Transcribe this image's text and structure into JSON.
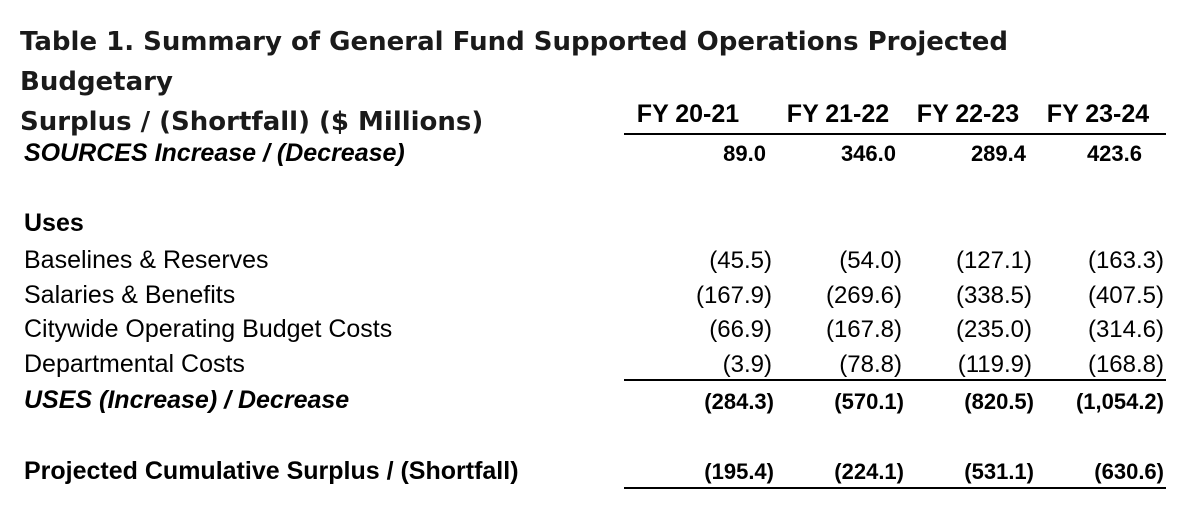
{
  "table": {
    "title_line1": "Table 1. Summary of General Fund Supported Operations Projected Budgetary",
    "title_line2": "Surplus / (Shortfall) ($ Millions)",
    "columns": [
      "FY 20-21",
      "FY 21-22",
      "FY 22-23",
      "FY 23-24"
    ],
    "sources": {
      "label": "SOURCES Increase / (Decrease)",
      "values": [
        "89.0",
        "346.0",
        "289.4",
        "423.6"
      ]
    },
    "uses_heading": "Uses",
    "uses_rows": [
      {
        "label": "Baselines & Reserves",
        "values": [
          "(45.5)",
          "(54.0)",
          "(127.1)",
          "(163.3)"
        ]
      },
      {
        "label": "Salaries & Benefits",
        "values": [
          "(167.9)",
          "(269.6)",
          "(338.5)",
          "(407.5)"
        ]
      },
      {
        "label": "Citywide Operating Budget Costs",
        "values": [
          "(66.9)",
          "(167.8)",
          "(235.0)",
          "(314.6)"
        ]
      },
      {
        "label": "Departmental Costs",
        "values": [
          "(3.9)",
          "(78.8)",
          "(119.9)",
          "(168.8)"
        ]
      }
    ],
    "uses_total": {
      "label": "USES (Increase) / Decrease",
      "values": [
        "(284.3)",
        "(570.1)",
        "(820.5)",
        "(1,054.2)"
      ]
    },
    "surplus": {
      "label": "Projected Cumulative Surplus / (Shortfall)",
      "values": [
        "(195.4)",
        "(224.1)",
        "(531.1)",
        "(630.6)"
      ]
    }
  }
}
